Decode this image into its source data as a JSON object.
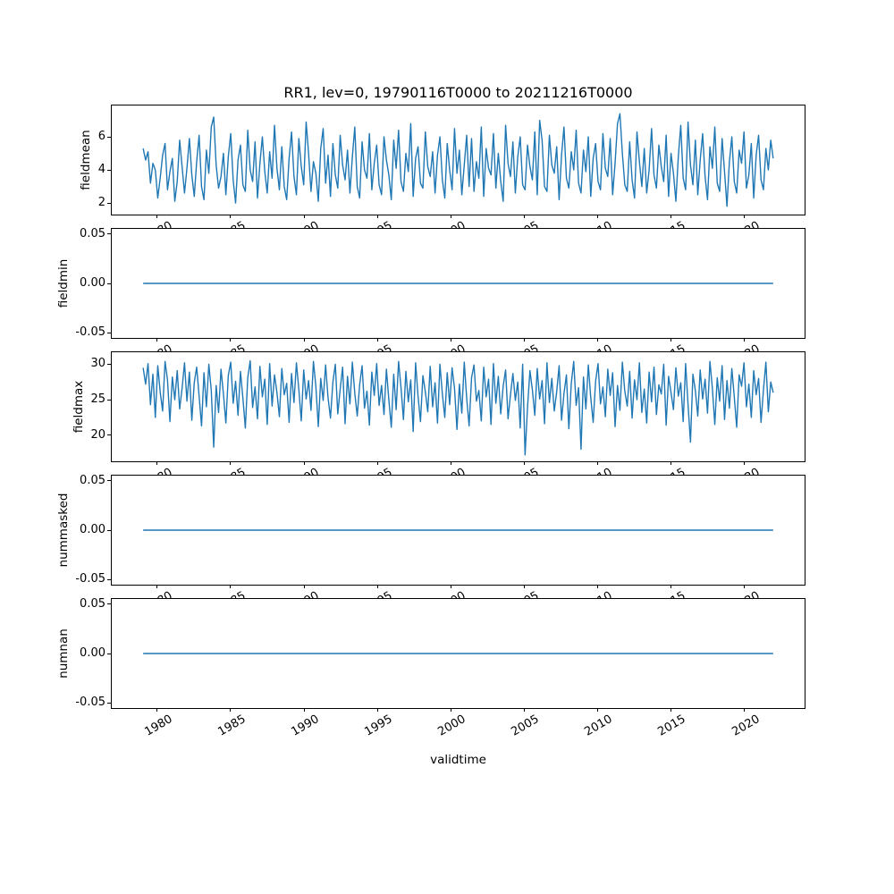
{
  "figure": {
    "title": "RR1, lev=0, 19790116T0000 to 20211216T0000",
    "xlabel": "validtime",
    "line_color": "#1f77b4",
    "axis_color": "#000000",
    "xlim": [
      1976.9,
      2024.1
    ],
    "x_tick_years": [
      "1980",
      "1985",
      "1990",
      "1995",
      "2000",
      "2005",
      "2010",
      "2015",
      "2020"
    ],
    "x_tick_values": [
      1980,
      1985,
      1990,
      1995,
      2000,
      2005,
      2010,
      2015,
      2020
    ]
  },
  "chart_data": [
    {
      "type": "line",
      "name": "fieldmean",
      "ylabel": "fieldmean",
      "x_range": [
        1979.04,
        2021.96
      ],
      "ylim": [
        1.3,
        7.9
      ],
      "ytick_values": [
        2,
        4,
        6
      ],
      "ytick_labels": [
        "2",
        "4",
        "6"
      ],
      "values": [
        5.3,
        4.6,
        5.1,
        3.2,
        4.4,
        4.0,
        2.3,
        3.5,
        4.9,
        5.6,
        2.8,
        3.9,
        4.7,
        2.1,
        3.3,
        5.8,
        4.2,
        2.6,
        4.1,
        5.9,
        3.7,
        2.4,
        4.5,
        6.1,
        3.0,
        2.2,
        5.2,
        3.8,
        6.6,
        7.2,
        4.3,
        2.9,
        3.6,
        5.0,
        2.5,
        4.8,
        6.2,
        3.4,
        2.0,
        4.6,
        5.5,
        3.1,
        2.7,
        6.4,
        4.0,
        3.3,
        5.7,
        2.3,
        4.4,
        6.0,
        3.9,
        2.6,
        5.1,
        3.5,
        6.7,
        4.1,
        2.8,
        5.4,
        3.0,
        2.2,
        4.7,
        6.3,
        3.6,
        2.5,
        5.9,
        4.2,
        3.1,
        6.9,
        5.0,
        2.7,
        4.5,
        3.8,
        2.1,
        5.3,
        6.5,
        3.2,
        4.9,
        2.4,
        5.6,
        3.7,
        2.9,
        6.1,
        4.3,
        3.4,
        5.2,
        2.6,
        4.8,
        6.6,
        3.0,
        2.3,
        5.7,
        4.0,
        3.5,
        6.2,
        2.8,
        4.4,
        5.5,
        3.1,
        2.5,
        6.0,
        4.6,
        3.7,
        2.2,
        5.8,
        4.1,
        6.4,
        3.3,
        2.7,
        5.0,
        3.9,
        6.8,
        2.4,
        4.7,
        5.4,
        3.2,
        2.9,
        6.3,
        4.2,
        3.6,
        5.1,
        2.6,
        4.9,
        6.0,
        3.4,
        2.3,
        5.6,
        4.0,
        2.8,
        6.5,
        3.8,
        5.2,
        2.5,
        4.3,
        6.1,
        3.0,
        5.9,
        2.7,
        4.5,
        3.5,
        6.6,
        2.4,
        5.3,
        4.1,
        3.7,
        6.2,
        2.9,
        5.0,
        3.3,
        2.1,
        6.7,
        4.4,
        3.6,
        5.7,
        2.6,
        4.8,
        6.0,
        3.1,
        2.8,
        5.5,
        4.2,
        3.4,
        6.3,
        2.5,
        7.0,
        5.8,
        3.0,
        2.7,
        6.1,
        4.3,
        3.8,
        5.4,
        2.2,
        4.9,
        6.6,
        3.5,
        2.9,
        5.1,
        4.0,
        6.4,
        3.2,
        2.6,
        5.2,
        3.9,
        6.0,
        2.4,
        4.7,
        5.6,
        3.3,
        2.8,
        6.2,
        4.1,
        3.6,
        5.9,
        2.5,
        4.4,
        6.8,
        7.4,
        5.0,
        3.1,
        2.7,
        5.7,
        3.4,
        2.3,
        6.3,
        4.5,
        3.0,
        5.3,
        2.6,
        4.0,
        6.5,
        3.7,
        2.9,
        5.5,
        4.2,
        3.3,
        6.1,
        2.4,
        5.0,
        3.8,
        2.1,
        4.8,
        6.7,
        3.5,
        2.8,
        6.9,
        4.3,
        3.1,
        5.8,
        2.5,
        4.6,
        6.2,
        3.6,
        2.2,
        5.4,
        4.1,
        6.6,
        3.2,
        2.7,
        5.9,
        3.9,
        1.8,
        4.5,
        6.0,
        3.3,
        2.6,
        5.2,
        4.4,
        6.3,
        2.9,
        3.7,
        5.6,
        2.3,
        4.9,
        6.1,
        3.4,
        2.8,
        5.3,
        4.0,
        5.8,
        4.7
      ]
    },
    {
      "type": "line",
      "name": "fieldmin",
      "ylabel": "fieldmin",
      "x_range": [
        1979.04,
        2021.96
      ],
      "ylim": [
        -0.055,
        0.055
      ],
      "ytick_values": [
        0.05,
        0.0,
        -0.05
      ],
      "ytick_labels": [
        "0.05",
        "0.00",
        "-0.05"
      ],
      "constant": 0
    },
    {
      "type": "line",
      "name": "fieldmax",
      "ylabel": "fieldmax",
      "x_range": [
        1979.04,
        2021.96
      ],
      "ylim": [
        16.3,
        31.7
      ],
      "ytick_values": [
        20,
        25,
        30
      ],
      "ytick_labels": [
        "20",
        "25",
        "30"
      ],
      "values": [
        29.5,
        27.2,
        30.1,
        24.3,
        28.6,
        22.5,
        29.8,
        26.1,
        23.4,
        30.4,
        27.8,
        21.9,
        28.2,
        25.0,
        29.1,
        23.7,
        26.6,
        30.2,
        24.8,
        28.9,
        22.1,
        27.4,
        29.6,
        25.5,
        21.3,
        28.8,
        24.0,
        30.0,
        26.3,
        18.3,
        27.0,
        23.2,
        29.3,
        25.8,
        21.7,
        28.4,
        30.3,
        24.5,
        27.6,
        22.8,
        29.0,
        25.2,
        21.0,
        28.1,
        30.5,
        23.9,
        26.8,
        22.3,
        29.7,
        25.4,
        27.9,
        21.5,
        30.1,
        24.1,
        28.5,
        26.0,
        22.6,
        29.4,
        25.7,
        27.3,
        21.8,
        28.7,
        24.6,
        30.2,
        26.4,
        22.0,
        29.2,
        25.1,
        27.7,
        23.5,
        30.4,
        26.9,
        21.2,
        28.0,
        24.9,
        29.9,
        25.3,
        22.4,
        27.5,
        30.0,
        23.0,
        26.5,
        29.6,
        21.6,
        28.3,
        24.4,
        30.3,
        25.9,
        22.7,
        27.1,
        29.8,
        23.8,
        26.2,
        21.4,
        28.9,
        25.6,
        30.1,
        24.2,
        27.0,
        22.9,
        29.3,
        25.0,
        21.1,
        28.6,
        23.6,
        30.4,
        26.7,
        22.2,
        29.0,
        24.7,
        27.8,
        20.5,
        30.2,
        25.5,
        21.9,
        28.4,
        26.1,
        23.3,
        29.7,
        24.0,
        27.4,
        21.7,
        30.0,
        25.8,
        22.5,
        28.8,
        24.3,
        29.5,
        26.6,
        20.8,
        27.2,
        23.1,
        30.3,
        25.2,
        21.3,
        28.1,
        29.9,
        24.8,
        26.3,
        22.0,
        29.6,
        25.4,
        27.9,
        21.5,
        30.1,
        24.5,
        28.3,
        23.0,
        26.9,
        29.2,
        22.3,
        25.7,
        28.7,
        24.9,
        27.5,
        21.0,
        30.0,
        17.2,
        23.9,
        29.1,
        26.4,
        22.8,
        29.4,
        25.1,
        27.7,
        21.6,
        30.2,
        24.6,
        28.0,
        23.4,
        26.1,
        29.8,
        22.1,
        25.9,
        28.5,
        20.9,
        27.3,
        30.4,
        24.2,
        26.7,
        18.0,
        28.2,
        23.7,
        29.9,
        25.3,
        21.8,
        27.6,
        30.1,
        24.4,
        26.8,
        22.6,
        29.3,
        25.6,
        28.8,
        21.2,
        27.0,
        23.5,
        30.3,
        26.2,
        24.1,
        29.0,
        22.4,
        27.8,
        25.0,
        30.2,
        23.2,
        26.5,
        21.7,
        28.9,
        24.7,
        29.6,
        22.9,
        27.1,
        25.8,
        30.0,
        21.4,
        28.3,
        26.0,
        23.6,
        29.5,
        25.5,
        27.4,
        21.9,
        30.1,
        24.3,
        19.0,
        28.6,
        26.3,
        22.7,
        29.2,
        25.1,
        27.9,
        23.1,
        30.4,
        26.6,
        21.5,
        28.1,
        24.8,
        29.8,
        22.2,
        27.7,
        23.8,
        29.4,
        25.4,
        21.1,
        28.5,
        26.9,
        30.2,
        24.0,
        27.2,
        22.5,
        29.1,
        25.7,
        28.0,
        21.8,
        26.4,
        30.3,
        23.3,
        27.5,
        26.0
      ]
    },
    {
      "type": "line",
      "name": "nummasked",
      "ylabel": "nummasked",
      "x_range": [
        1979.04,
        2021.96
      ],
      "ylim": [
        -0.055,
        0.055
      ],
      "ytick_values": [
        0.05,
        0.0,
        -0.05
      ],
      "ytick_labels": [
        "0.05",
        "0.00",
        "-0.05"
      ],
      "constant": 0
    },
    {
      "type": "line",
      "name": "numnan",
      "ylabel": "numnan",
      "x_range": [
        1979.04,
        2021.96
      ],
      "ylim": [
        -0.055,
        0.055
      ],
      "ytick_values": [
        0.05,
        0.0,
        -0.05
      ],
      "ytick_labels": [
        "0.05",
        "0.00",
        "-0.05"
      ],
      "constant": 0
    }
  ]
}
